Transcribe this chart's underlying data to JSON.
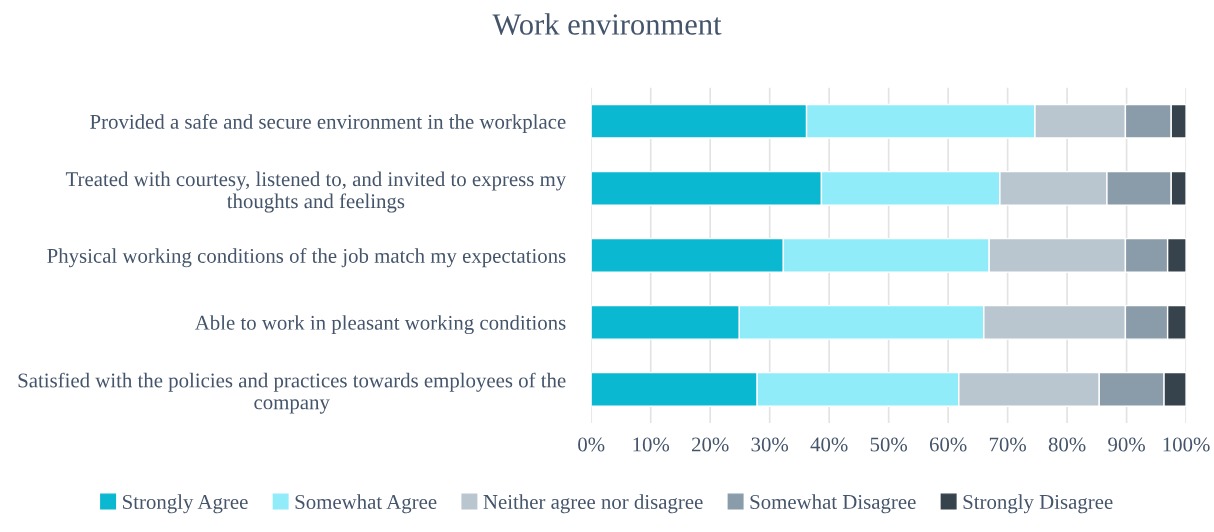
{
  "chart_data": {
    "type": "bar",
    "title": "Work environment",
    "orientation": "horizontal",
    "stacked": true,
    "categories": [
      "Provided a safe and secure environment in the workplace",
      "Treated with courtesy, listened to, and invited to express my thoughts and feelings",
      "Physical working conditions of the job match my expectations",
      "Able to work in pleasant working conditions",
      "Satisfied with the policies and practices towards employees of the company"
    ],
    "series": [
      {
        "name": "Strongly Agree",
        "color": "#0bb8d1",
        "values": [
          36.2,
          38.7,
          32.3,
          24.9,
          27.9
        ]
      },
      {
        "name": "Somewhat Agree",
        "color": "#91ecfa",
        "values": [
          38.4,
          30.0,
          34.6,
          41.1,
          33.9
        ]
      },
      {
        "name": "Neither agree nor disagree",
        "color": "#b9c6cf",
        "values": [
          15.2,
          18.0,
          22.9,
          23.8,
          23.6
        ]
      },
      {
        "name": "Somewhat Disagree",
        "color": "#8a9caa",
        "values": [
          7.7,
          10.8,
          7.1,
          7.1,
          10.9
        ]
      },
      {
        "name": "Strongly Disagree",
        "color": "#36434d",
        "values": [
          2.5,
          2.5,
          3.1,
          3.1,
          3.7
        ]
      }
    ],
    "xlim": [
      0,
      100
    ],
    "xticks": [
      {
        "value": 0,
        "label": "0%"
      },
      {
        "value": 10,
        "label": "10%"
      },
      {
        "value": 20,
        "label": "20%"
      },
      {
        "value": 30,
        "label": "30%"
      },
      {
        "value": 40,
        "label": "40%"
      },
      {
        "value": 50,
        "label": "50%"
      },
      {
        "value": 60,
        "label": "60%"
      },
      {
        "value": 70,
        "label": "70%"
      },
      {
        "value": 80,
        "label": "80%"
      },
      {
        "value": 90,
        "label": "90%"
      },
      {
        "value": 100,
        "label": "100%"
      }
    ],
    "grid": "x",
    "legend": "bottom"
  }
}
